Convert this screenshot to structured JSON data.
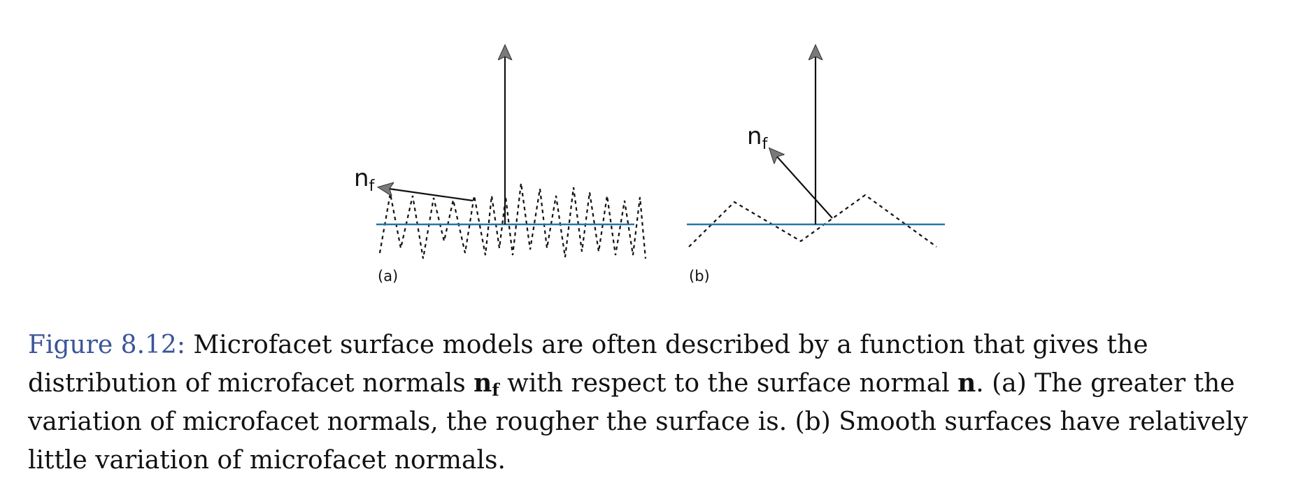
{
  "figure": {
    "panel_a": {
      "label": "(a)",
      "normal_label": "n",
      "normal_subscript": "f"
    },
    "panel_b": {
      "label": "(b)",
      "normal_label": "n",
      "normal_subscript": "f"
    },
    "colors": {
      "surface_line": "#2a74a8",
      "arrow_head": "#7a7a7a",
      "ink": "#111111"
    }
  },
  "caption": {
    "label": "Figure 8.12:",
    "text_1": " Microfacet surface models are often described by a function that gives the distribution of microfacet normals ",
    "symbol_nf": "n",
    "symbol_nf_sub": "f",
    "text_2": " with respect to the surface normal ",
    "symbol_n": "n",
    "text_3": ". (a) The greater the variation of microfacet normals, the rougher the surface is. (b) Smooth surfaces have relatively little variation of microfacet normals.",
    "label_color": "#3b559a"
  }
}
